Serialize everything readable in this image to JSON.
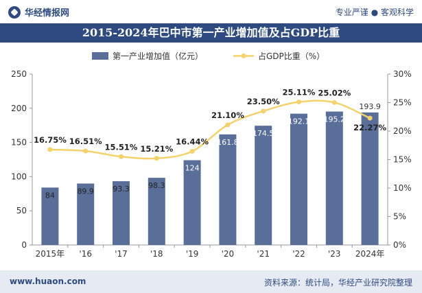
{
  "header": {
    "logo_text": "华经情报网",
    "tagline": "专业严谨 ● 客观科学",
    "title": "2015-2024年巴中市第一产业增加值及占GDP比重"
  },
  "footer": {
    "website": "www.huaon.com",
    "source": "资料来源：统计局，华经产业研究院整理"
  },
  "colors": {
    "brand": "#2e4a80",
    "bar": "#5a6e9a",
    "line": "#f5d36a",
    "footer_bg": "#e6ebf3"
  },
  "chart_data": {
    "type": "bar",
    "categories": [
      "2015年",
      "'16",
      "'17",
      "'18",
      "'19",
      "'20",
      "'21",
      "'22",
      "'23",
      "2024年"
    ],
    "series": [
      {
        "name": "第一产业增加值（亿元）",
        "type": "bar",
        "axis": "left",
        "values": [
          84,
          89.9,
          93.3,
          98.3,
          124,
          161.8,
          174.5,
          192.1,
          195.2,
          193.9
        ],
        "labels": [
          "84",
          "89.9",
          "93.3",
          "98.3",
          "124",
          "161.8",
          "174.5",
          "192.1",
          "195.2",
          "193.9"
        ]
      },
      {
        "name": "占GDP比重（%）",
        "type": "line",
        "axis": "right",
        "values": [
          16.75,
          16.51,
          15.51,
          15.21,
          16.44,
          21.1,
          23.5,
          25.11,
          25.02,
          22.27
        ],
        "labels": [
          "16.75%",
          "16.51%",
          "15.51%",
          "15.21%",
          "16.44%",
          "21.10%",
          "23.50%",
          "25.11%",
          "25.02%",
          "22.27%"
        ]
      }
    ],
    "ylim": [
      0,
      250
    ],
    "yticks": [
      "0",
      "50",
      "100",
      "150",
      "200",
      "250"
    ],
    "y2lim": [
      0,
      30
    ],
    "y2ticks": [
      "0%",
      "5%",
      "10%",
      "15%",
      "20%",
      "25%",
      "30%"
    ],
    "legend": "top-center",
    "grid": false
  }
}
